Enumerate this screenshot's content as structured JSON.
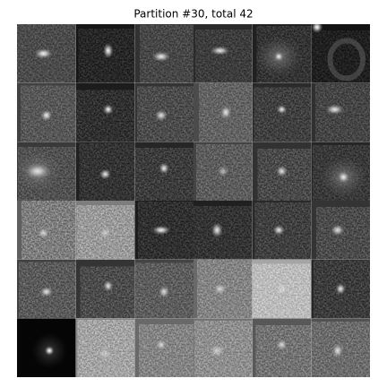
{
  "title": "Partition #30, total 42"
}
